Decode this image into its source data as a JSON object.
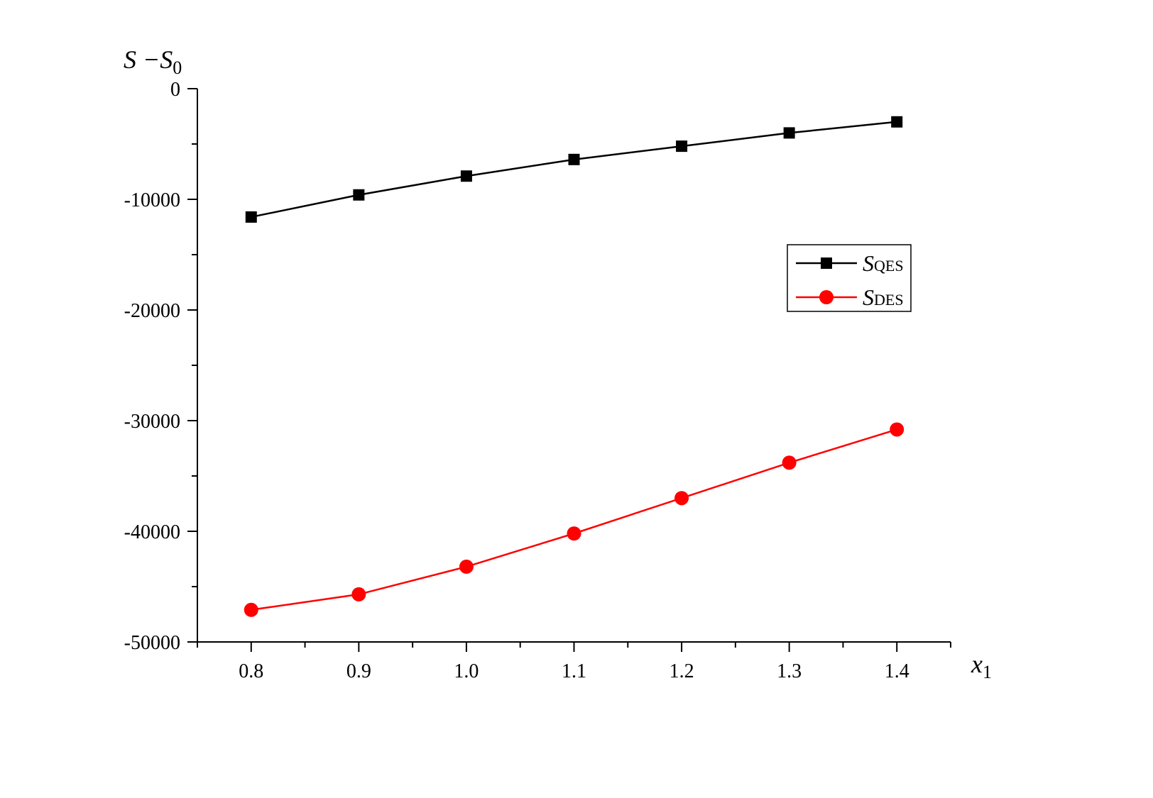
{
  "chart_data": {
    "type": "line",
    "ylabel": "S −S0",
    "ylabel_main": "S −S",
    "ylabel_sub": "0",
    "xlabel": "x1",
    "xlabel_main": "x",
    "xlabel_sub": "1",
    "xlim": [
      0.75,
      1.45
    ],
    "ylim": [
      -50000,
      0
    ],
    "x_ticks": [
      0.8,
      0.9,
      1.0,
      1.1,
      1.2,
      1.3,
      1.4
    ],
    "x_tick_labels": [
      "0.8",
      "0.9",
      "1.0",
      "1.1",
      "1.2",
      "1.3",
      "1.4"
    ],
    "y_ticks": [
      0,
      -10000,
      -20000,
      -30000,
      -40000,
      -50000
    ],
    "y_tick_labels": [
      "0",
      "-10000",
      "-20000",
      "-30000",
      "-40000",
      "-50000"
    ],
    "x_minor_step": 0.05,
    "y_minor_step": 5000,
    "grid": false,
    "legend_position": "right",
    "x": [
      0.8,
      0.9,
      1.0,
      1.1,
      1.2,
      1.3,
      1.4
    ],
    "series": [
      {
        "name": "SQES",
        "name_main": "S",
        "name_sub": "QES",
        "color": "#000000",
        "marker": "square",
        "values": [
          -11600,
          -9600,
          -7900,
          -6400,
          -5200,
          -4000,
          -3000
        ]
      },
      {
        "name": "SDES",
        "name_main": "S",
        "name_sub": "DES",
        "color": "#ff0000",
        "marker": "circle",
        "values": [
          -47100,
          -45700,
          -43200,
          -40200,
          -37000,
          -33800,
          -30800
        ]
      }
    ]
  }
}
